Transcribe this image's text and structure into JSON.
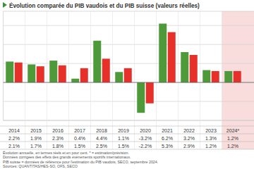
{
  "chart_data": {
    "type": "bar",
    "title": "Évolution comparée du PIB vaudois et du PIB suisse (valeurs réelles)",
    "categories": [
      "2014",
      "2015",
      "2016",
      "2017",
      "2018",
      "2019",
      "2020",
      "2021",
      "2022",
      "2023",
      "2024*"
    ],
    "series": [
      {
        "color": "#4e9a3a",
        "values": [
          2.2,
          1.9,
          2.3,
          0.4,
          4.4,
          1.1,
          -3.2,
          6.2,
          3.2,
          1.3,
          1.2
        ],
        "value_labels": [
          "2.2%",
          "1.9%",
          "2.3%",
          "0.4%",
          "4.4%",
          "1.1%",
          "-3.2%",
          "6.2%",
          "3.2%",
          "1.3%",
          "1.2%"
        ]
      },
      {
        "color": "#e8302a",
        "values": [
          2.1,
          1.7,
          1.8,
          1.5,
          2.5,
          1.5,
          -2.2,
          5.3,
          2.9,
          1.2,
          1.2
        ],
        "value_labels": [
          "2.1%",
          "1.7%",
          "1.8%",
          "1.5%",
          "2.5%",
          "1.5%",
          "-2.2%",
          "5.3%",
          "2.9%",
          "1.2%",
          "1.2%"
        ]
      }
    ],
    "ylim": [
      -4,
      7.5
    ],
    "yticks": [
      -4,
      -2,
      0,
      2,
      4,
      6
    ],
    "grid": true,
    "data_labels": true,
    "tick_labels": "x",
    "annotations": [
      "Évolution annuelle, en termes réels et en pour cent. * = estimation/prévision.",
      "Données corrigées des effets des grands événements sportifs internationaux.",
      "PIB suisse = données de référence pour l'estimation du PIB vaudois, SECO, septembre 2024.",
      "Sources: QUANTITAS/HES-SO, OFS, SECO"
    ]
  }
}
